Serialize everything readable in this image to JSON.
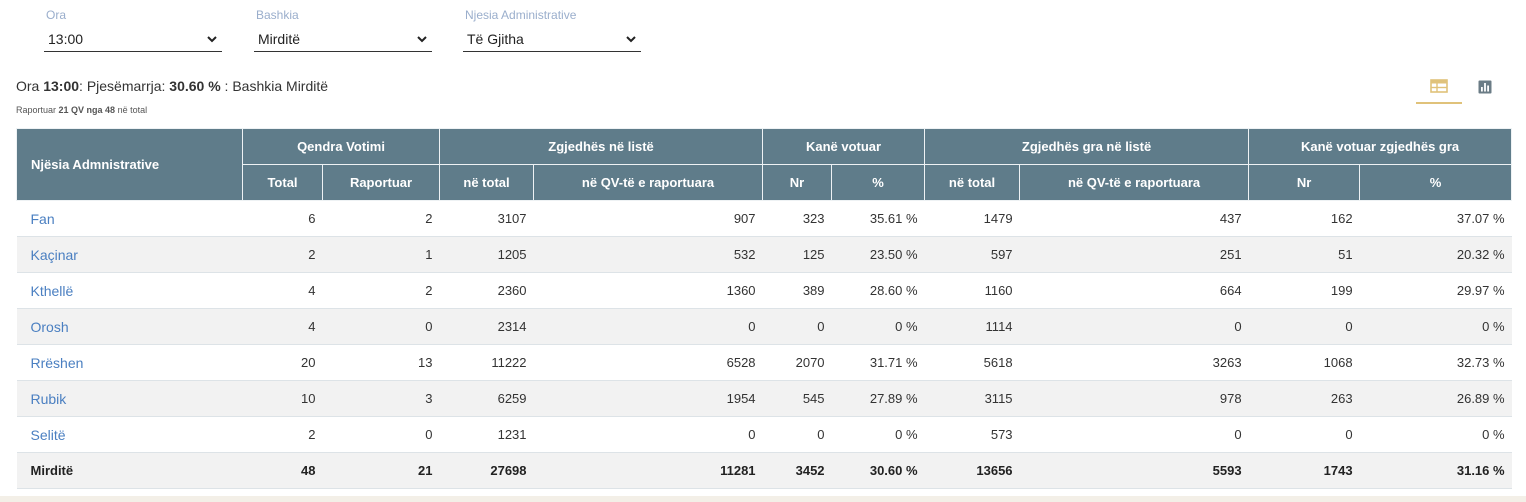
{
  "filters": [
    {
      "label": "Ora",
      "value": "13:00"
    },
    {
      "label": "Bashkia",
      "value": "Mirditë"
    },
    {
      "label": "Njesia Administrative",
      "value": "Të Gjitha"
    }
  ],
  "summary": {
    "prefix": "Ora ",
    "time": "13:00",
    "mid": ": Pjesëmarrja: ",
    "percent": "30.60 %",
    "suffix": " : Bashkia Mirditë",
    "reported_prefix": "Raportuar ",
    "reported": "21 QV nga 48",
    "reported_suffix": " në total"
  },
  "table": {
    "group_headers": {
      "name": "Njësia Admnistrative",
      "qendra": "Qendra Votimi",
      "zgjedhes": "Zgjedhës në listë",
      "kane_votuar": "Kanë votuar",
      "zgjedhes_gra": "Zgjedhës gra në listë",
      "kane_votuar_gra": "Kanë votuar zgjedhës gra"
    },
    "sub_headers": {
      "total": "Total",
      "raportuar": "Raportuar",
      "ne_total": "në total",
      "ne_qv": "në QV-të e raportuara",
      "nr": "Nr",
      "pct": "%",
      "ne_total_gra": "në total",
      "ne_qv_gra": "në QV-të e raportuara",
      "nr_gra": "Nr",
      "pct_gra": "%"
    },
    "rows": [
      {
        "name": "Fan",
        "total": "6",
        "raportuar": "2",
        "ne_total": "3107",
        "ne_qv": "907",
        "nr": "323",
        "pct": "35.61 %",
        "gra_total": "1479",
        "gra_qv": "437",
        "gra_nr": "162",
        "gra_pct": "37.07 %"
      },
      {
        "name": "Kaçinar",
        "total": "2",
        "raportuar": "1",
        "ne_total": "1205",
        "ne_qv": "532",
        "nr": "125",
        "pct": "23.50 %",
        "gra_total": "597",
        "gra_qv": "251",
        "gra_nr": "51",
        "gra_pct": "20.32 %"
      },
      {
        "name": "Kthellë",
        "total": "4",
        "raportuar": "2",
        "ne_total": "2360",
        "ne_qv": "1360",
        "nr": "389",
        "pct": "28.60 %",
        "gra_total": "1160",
        "gra_qv": "664",
        "gra_nr": "199",
        "gra_pct": "29.97 %"
      },
      {
        "name": "Orosh",
        "total": "4",
        "raportuar": "0",
        "ne_total": "2314",
        "ne_qv": "0",
        "nr": "0",
        "pct": "0 %",
        "gra_total": "1114",
        "gra_qv": "0",
        "gra_nr": "0",
        "gra_pct": "0 %"
      },
      {
        "name": "Rrëshen",
        "total": "20",
        "raportuar": "13",
        "ne_total": "11222",
        "ne_qv": "6528",
        "nr": "2070",
        "pct": "31.71 %",
        "gra_total": "5618",
        "gra_qv": "3263",
        "gra_nr": "1068",
        "gra_pct": "32.73 %"
      },
      {
        "name": "Rubik",
        "total": "10",
        "raportuar": "3",
        "ne_total": "6259",
        "ne_qv": "1954",
        "nr": "545",
        "pct": "27.89 %",
        "gra_total": "3115",
        "gra_qv": "978",
        "gra_nr": "263",
        "gra_pct": "26.89 %"
      },
      {
        "name": "Selitë",
        "total": "2",
        "raportuar": "0",
        "ne_total": "1231",
        "ne_qv": "0",
        "nr": "0",
        "pct": "0 %",
        "gra_total": "573",
        "gra_qv": "0",
        "gra_nr": "0",
        "gra_pct": "0 %"
      }
    ],
    "total_row": {
      "name": "Mirditë",
      "total": "48",
      "raportuar": "21",
      "ne_total": "27698",
      "ne_qv": "11281",
      "nr": "3452",
      "pct": "30.60 %",
      "gra_total": "13656",
      "gra_qv": "5593",
      "gra_nr": "1743",
      "gra_pct": "31.16 %"
    }
  },
  "icons": {
    "table_view": "table-icon",
    "chart_view": "bar-chart-icon",
    "accent": "#e0c27a",
    "header_bg": "#5f7c8a"
  }
}
